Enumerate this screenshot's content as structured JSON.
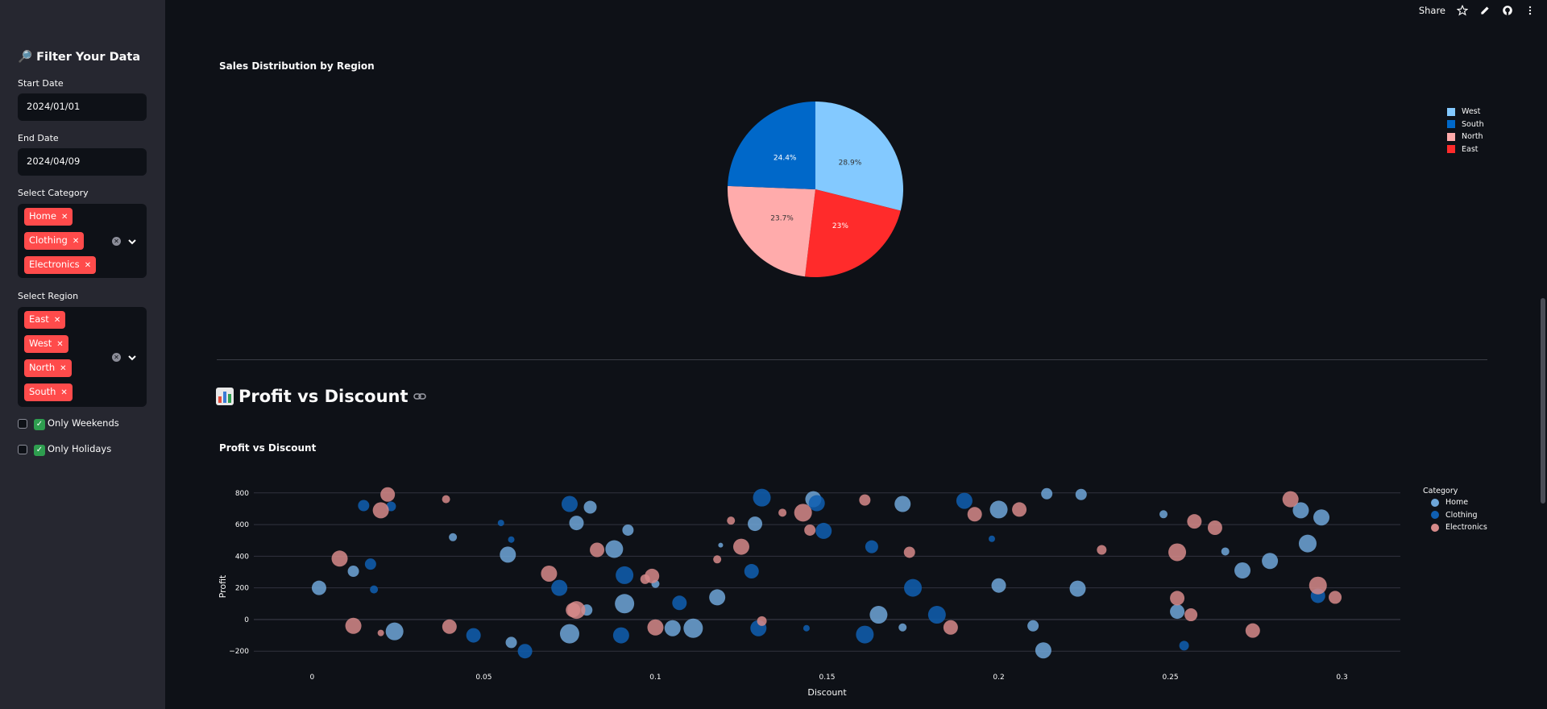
{
  "sidebar": {
    "title": "🔎 Filter Your Data",
    "start_date_label": "Start Date",
    "start_date_value": "2024/01/01",
    "end_date_label": "End Date",
    "end_date_value": "2024/04/09",
    "category_label": "Select Category",
    "categories": [
      "Home",
      "Clothing",
      "Electronics"
    ],
    "region_label": "Select Region",
    "regions": [
      "East",
      "West",
      "North",
      "South"
    ],
    "only_weekends": "Only Weekends",
    "only_holidays": "Only Holidays"
  },
  "topbar": {
    "share_label": "Share"
  },
  "pie_chart": {
    "title": "Sales Distribution by Region"
  },
  "section": {
    "heading": "Profit vs Discount"
  },
  "scatter_chart": {
    "title": "Profit vs Discount",
    "legend_title": "Category"
  },
  "colors": {
    "west": "#83c9ff",
    "south": "#0068c9",
    "north": "#ffabab",
    "east": "#ff2b2b",
    "home": "#6ea6d8",
    "clothing": "#0f5fb2",
    "electronics": "#d68a8a"
  },
  "chart_data": [
    {
      "type": "pie",
      "title": "Sales Distribution by Region",
      "labels": [
        "West",
        "East",
        "North",
        "South"
      ],
      "values": [
        28.9,
        23,
        23.7,
        24.4
      ],
      "value_labels": [
        "28.9%",
        "23%",
        "23.7%",
        "24.4%"
      ],
      "legend": [
        "West",
        "South",
        "North",
        "East"
      ],
      "legend_placement": "top-right"
    },
    {
      "type": "scatter",
      "title": "Profit vs Discount",
      "xlabel": "Discount",
      "ylabel": "Profit",
      "xlim": [
        -0.017,
        0.317
      ],
      "ylim": [
        -260,
        860
      ],
      "xticks": [
        "0",
        "0.05",
        "0.1",
        "0.15",
        "0.2",
        "0.25",
        "0.3"
      ],
      "yticks": [
        "800",
        "600",
        "400",
        "200",
        "0",
        "−200"
      ],
      "ytick_values": [
        800,
        600,
        400,
        200,
        0,
        -200
      ],
      "xtick_values": [
        0,
        0.05,
        0.1,
        0.15,
        0.2,
        0.25,
        0.3
      ],
      "legend_title": "Category",
      "series": [
        {
          "name": "Home",
          "points": [
            [
              0.002,
              200,
              9
            ],
            [
              0.012,
              305,
              7
            ],
            [
              0.024,
              -75,
              11
            ],
            [
              0.041,
              520,
              5
            ],
            [
              0.057,
              410,
              10
            ],
            [
              0.058,
              -145,
              7
            ],
            [
              0.075,
              -90,
              12
            ],
            [
              0.077,
              610,
              9
            ],
            [
              0.08,
              60,
              7
            ],
            [
              0.081,
              710,
              8
            ],
            [
              0.088,
              445,
              11
            ],
            [
              0.091,
              100,
              12
            ],
            [
              0.092,
              565,
              7
            ],
            [
              0.1,
              225,
              5
            ],
            [
              0.105,
              -55,
              10
            ],
            [
              0.111,
              -55,
              12
            ],
            [
              0.118,
              140,
              10
            ],
            [
              0.119,
              470,
              3
            ],
            [
              0.129,
              605,
              9
            ],
            [
              0.146,
              760,
              10
            ],
            [
              0.165,
              30,
              11
            ],
            [
              0.172,
              -50,
              5
            ],
            [
              0.172,
              730,
              10
            ],
            [
              0.2,
              695,
              11
            ],
            [
              0.2,
              215,
              9
            ],
            [
              0.21,
              -40,
              7
            ],
            [
              0.213,
              -195,
              10
            ],
            [
              0.214,
              795,
              7
            ],
            [
              0.223,
              195,
              10
            ],
            [
              0.224,
              790,
              7
            ],
            [
              0.248,
              665,
              5
            ],
            [
              0.252,
              50,
              9
            ],
            [
              0.266,
              430,
              5
            ],
            [
              0.271,
              310,
              10
            ],
            [
              0.279,
              370,
              10
            ],
            [
              0.288,
              690,
              10
            ],
            [
              0.29,
              480,
              11
            ],
            [
              0.294,
              645,
              10
            ]
          ]
        },
        {
          "name": "Clothing",
          "points": [
            [
              0.015,
              720,
              7
            ],
            [
              0.017,
              350,
              7
            ],
            [
              0.018,
              190,
              5
            ],
            [
              0.023,
              715,
              6
            ],
            [
              0.047,
              -100,
              9
            ],
            [
              0.055,
              610,
              4
            ],
            [
              0.058,
              505,
              4
            ],
            [
              0.062,
              -200,
              9
            ],
            [
              0.072,
              200,
              10
            ],
            [
              0.075,
              730,
              10
            ],
            [
              0.09,
              -100,
              10
            ],
            [
              0.091,
              280,
              11
            ],
            [
              0.107,
              105,
              9
            ],
            [
              0.128,
              305,
              9
            ],
            [
              0.13,
              -55,
              10
            ],
            [
              0.131,
              770,
              11
            ],
            [
              0.144,
              -55,
              4
            ],
            [
              0.147,
              735,
              10
            ],
            [
              0.149,
              560,
              10
            ],
            [
              0.161,
              -95,
              11
            ],
            [
              0.163,
              460,
              8
            ],
            [
              0.175,
              200,
              11
            ],
            [
              0.182,
              30,
              11
            ],
            [
              0.19,
              750,
              10
            ],
            [
              0.198,
              510,
              4
            ],
            [
              0.254,
              -165,
              6
            ],
            [
              0.293,
              150,
              9
            ]
          ]
        },
        {
          "name": "Electronics",
          "points": [
            [
              0.008,
              385,
              10
            ],
            [
              0.012,
              -40,
              10
            ],
            [
              0.02,
              -85,
              4
            ],
            [
              0.02,
              690,
              10
            ],
            [
              0.022,
              790,
              9
            ],
            [
              0.039,
              760,
              5
            ],
            [
              0.04,
              -45,
              9
            ],
            [
              0.069,
              290,
              10
            ],
            [
              0.076,
              60,
              9
            ],
            [
              0.077,
              60,
              11
            ],
            [
              0.083,
              440,
              9
            ],
            [
              0.097,
              255,
              6
            ],
            [
              0.099,
              275,
              9
            ],
            [
              0.1,
              -50,
              10
            ],
            [
              0.118,
              380,
              5
            ],
            [
              0.122,
              625,
              5
            ],
            [
              0.125,
              460,
              10
            ],
            [
              0.131,
              -10,
              6
            ],
            [
              0.137,
              675,
              5
            ],
            [
              0.143,
              675,
              11
            ],
            [
              0.145,
              565,
              7
            ],
            [
              0.161,
              755,
              7
            ],
            [
              0.174,
              425,
              7
            ],
            [
              0.186,
              -50,
              9
            ],
            [
              0.193,
              665,
              9
            ],
            [
              0.206,
              695,
              9
            ],
            [
              0.23,
              440,
              6
            ],
            [
              0.252,
              425,
              11
            ],
            [
              0.252,
              135,
              9
            ],
            [
              0.256,
              30,
              8
            ],
            [
              0.257,
              620,
              9
            ],
            [
              0.263,
              580,
              9
            ],
            [
              0.274,
              -70,
              9
            ],
            [
              0.285,
              760,
              10
            ],
            [
              0.293,
              215,
              11
            ],
            [
              0.298,
              140,
              8
            ]
          ]
        }
      ]
    }
  ]
}
